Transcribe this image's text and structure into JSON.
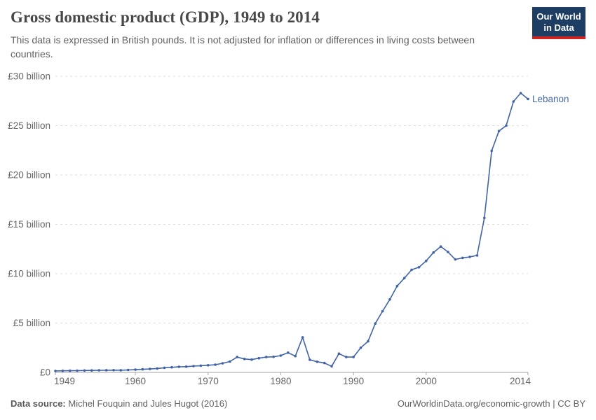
{
  "header": {
    "title": "Gross domestic product (GDP), 1949 to 2014",
    "subtitle": "This data is expressed in British pounds. It is not adjusted for inflation or differences in living costs between countries.",
    "logo": {
      "line1": "Our World",
      "line2": "in Data"
    }
  },
  "footer": {
    "source_label": "Data source:",
    "source_text": " Michel Fouquin and Jules Hugot (2016)",
    "link_text": "OurWorldinData.org/economic-growth | CC BY"
  },
  "colors": {
    "line": "#4063a8",
    "series_label": "#4568a9",
    "grid": "#dcdcdc",
    "axis": "#a1a1a1",
    "tick_text": "#666666",
    "logo_bg": "#1d3d63",
    "logo_stripe": "#cf2420",
    "title_text": "#484848",
    "subtitle_text": "#616161"
  },
  "chart_data": {
    "type": "line",
    "title": "Gross domestic product (GDP), 1949 to 2014",
    "unit": "British pounds (billions)",
    "xlabel": "",
    "ylabel": "GDP",
    "xlim": [
      1949,
      2014
    ],
    "ylim": [
      0,
      30
    ],
    "grid": "horizontal-dashed",
    "legend_position": "end-of-line",
    "x_ticks": [
      1949,
      1960,
      1970,
      1980,
      1990,
      2000,
      2014
    ],
    "y_ticks": [
      {
        "value": 0,
        "label": "£0"
      },
      {
        "value": 5,
        "label": "£5 billion"
      },
      {
        "value": 10,
        "label": "£10 billion"
      },
      {
        "value": 15,
        "label": "£15 billion"
      },
      {
        "value": 20,
        "label": "£20 billion"
      },
      {
        "value": 25,
        "label": "£25 billion"
      },
      {
        "value": 30,
        "label": "£30 billion"
      }
    ],
    "years": [
      1949,
      1950,
      1951,
      1952,
      1953,
      1954,
      1955,
      1956,
      1957,
      1958,
      1959,
      1960,
      1961,
      1962,
      1963,
      1964,
      1965,
      1966,
      1967,
      1968,
      1969,
      1970,
      1971,
      1972,
      1973,
      1974,
      1975,
      1976,
      1977,
      1978,
      1979,
      1980,
      1981,
      1982,
      1983,
      1984,
      1985,
      1986,
      1987,
      1988,
      1989,
      1990,
      1991,
      1992,
      1993,
      1994,
      1995,
      1996,
      1997,
      1998,
      1999,
      2000,
      2001,
      2002,
      2003,
      2004,
      2005,
      2006,
      2007,
      2008,
      2009,
      2010,
      2011,
      2012,
      2013,
      2014
    ],
    "series": [
      {
        "name": "Lebanon",
        "color": "#4063a8",
        "values": [
          0.15,
          0.16,
          0.17,
          0.18,
          0.19,
          0.2,
          0.21,
          0.22,
          0.23,
          0.22,
          0.25,
          0.28,
          0.31,
          0.35,
          0.4,
          0.47,
          0.52,
          0.57,
          0.58,
          0.64,
          0.68,
          0.72,
          0.78,
          0.92,
          1.1,
          1.55,
          1.36,
          1.3,
          1.44,
          1.55,
          1.58,
          1.7,
          2.0,
          1.65,
          3.55,
          1.28,
          1.08,
          0.95,
          0.62,
          1.9,
          1.55,
          1.55,
          2.5,
          3.15,
          4.95,
          6.2,
          7.4,
          8.75,
          9.55,
          10.4,
          10.65,
          11.3,
          12.15,
          12.75,
          12.2,
          11.45,
          11.6,
          11.7,
          11.85,
          15.65,
          22.45,
          24.45,
          25.0,
          27.45,
          28.3,
          27.7
        ]
      }
    ]
  }
}
